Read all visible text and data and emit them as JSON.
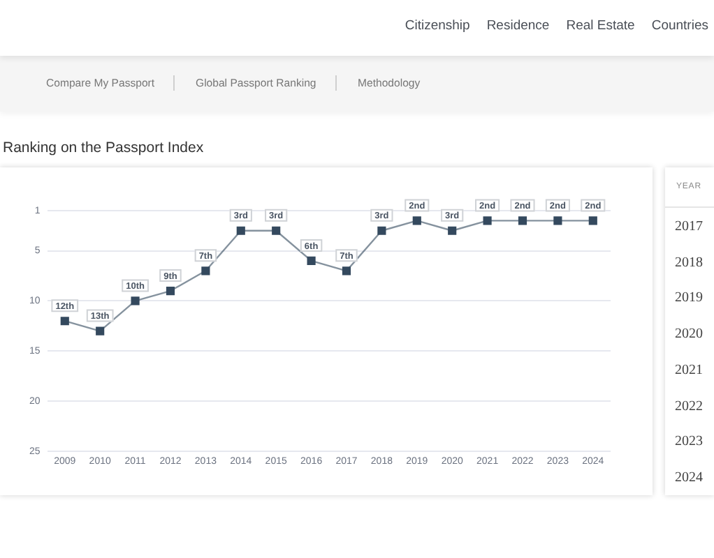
{
  "chart_data": {
    "type": "line",
    "title": "Ranking on the Passport Index",
    "categories": [
      "2009",
      "2010",
      "2011",
      "2012",
      "2013",
      "2014",
      "2015",
      "2016",
      "2017",
      "2018",
      "2019",
      "2020",
      "2021",
      "2022",
      "2023",
      "2024"
    ],
    "values": [
      12,
      13,
      10,
      9,
      7,
      3,
      3,
      6,
      7,
      3,
      2,
      3,
      2,
      2,
      2,
      2
    ],
    "value_labels": [
      "12th",
      "13th",
      "10th",
      "9th",
      "7th",
      "3rd",
      "3rd",
      "6th",
      "7th",
      "3rd",
      "2nd",
      "3rd",
      "2nd",
      "2nd",
      "2nd",
      "2nd"
    ],
    "color": "#34495e",
    "marker": "square",
    "line_style": "solid",
    "grid": "y",
    "ylim": [
      25,
      1
    ],
    "yticks": [
      1,
      5,
      10,
      15,
      20,
      25
    ],
    "annotations": [
      "Citizenship",
      "Residence",
      "Real Estate",
      "Countries",
      "Compare My Passport",
      "Global Passport Ranking",
      "Methodology",
      "YEAR",
      "2017",
      "2018",
      "2019",
      "2020",
      "2021",
      "2022",
      "2023",
      "2024"
    ]
  }
}
